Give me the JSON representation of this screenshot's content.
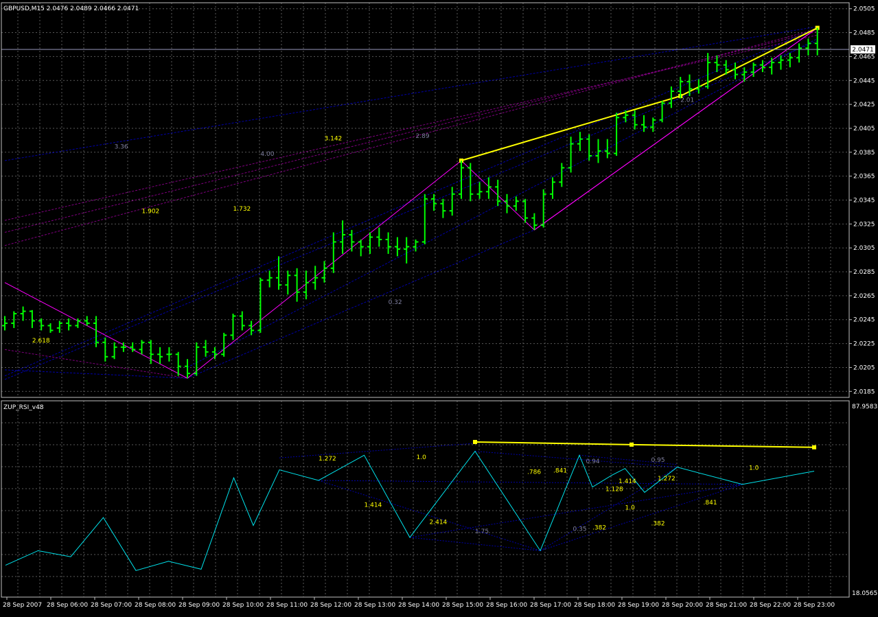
{
  "colors": {
    "background": "#000000",
    "frame": "#c0c0c0",
    "grid": "#5a5a5a",
    "candle": "#00ff00",
    "zigzag": "#ff00ff",
    "zup_yellow": "#ffff00",
    "fib_dark": "#0000aa",
    "fib_purple": "#800080",
    "rsi": "#00e5ee",
    "text": "#ffffff",
    "label_yellow": "#ffff00",
    "label_gray": "#8080a0"
  },
  "main_panel": {
    "title": "GBPUSD,M15  2.0476 2.0489 2.0466 2.0471",
    "current_price_label": "2.0471",
    "current_price": 2.0471,
    "price_ticks": [
      "2.0505",
      "2.0485",
      "2.0465",
      "2.0445",
      "2.0425",
      "2.0405",
      "2.0385",
      "2.0365",
      "2.0345",
      "2.0325",
      "2.0305",
      "2.0285",
      "2.0265",
      "2.0245",
      "2.0225",
      "2.0205",
      "2.0185"
    ]
  },
  "sub_panel": {
    "title": "ZUP_RSI_v48",
    "top_label": "87.9583",
    "bottom_label": "18.0565"
  },
  "time_axis": {
    "labels": [
      "28 Sep 2007",
      "28 Sep 06:00",
      "28 Sep 07:00",
      "28 Sep 08:00",
      "28 Sep 09:00",
      "28 Sep 10:00",
      "28 Sep 11:00",
      "28 Sep 12:00",
      "28 Sep 13:00",
      "28 Sep 14:00",
      "28 Sep 15:00",
      "28 Sep 16:00",
      "28 Sep 17:00",
      "28 Sep 18:00",
      "28 Sep 19:00",
      "28 Sep 20:00",
      "28 Sep 21:00",
      "28 Sep 22:00",
      "28 Sep 23:00"
    ]
  },
  "chart_data": [
    {
      "type": "ohlc",
      "symbol": "GBPUSD",
      "timeframe": "M15",
      "ylim": [
        2.018,
        2.051
      ],
      "bars": [
        [
          2.024,
          2.0248,
          2.0236,
          2.0242
        ],
        [
          2.0242,
          2.0252,
          2.0238,
          2.025
        ],
        [
          2.025,
          2.0256,
          2.0244,
          2.0252
        ],
        [
          2.0252,
          2.0253,
          2.0238,
          2.0244
        ],
        [
          2.0244,
          2.0246,
          2.0236,
          2.024
        ],
        [
          2.024,
          2.0242,
          2.0234,
          2.0236
        ],
        [
          2.0238,
          2.0244,
          2.0234,
          2.0242
        ],
        [
          2.0242,
          2.0246,
          2.0236,
          2.024
        ],
        [
          2.024,
          2.0246,
          2.0238,
          2.0244
        ],
        [
          2.0244,
          2.0248,
          2.024,
          2.0242
        ],
        [
          2.0242,
          2.0248,
          2.0222,
          2.0226
        ],
        [
          2.0226,
          2.023,
          2.021,
          2.0214
        ],
        [
          2.0214,
          2.0226,
          2.0212,
          2.0222
        ],
        [
          2.0222,
          2.0226,
          2.0218,
          2.0222
        ],
        [
          2.0222,
          2.0226,
          2.0218,
          2.022
        ],
        [
          2.022,
          2.0228,
          2.0216,
          2.0226
        ],
        [
          2.0226,
          2.0228,
          2.0208,
          2.0216
        ],
        [
          2.0216,
          2.0222,
          2.0208,
          2.0214
        ],
        [
          2.0216,
          2.0222,
          2.021,
          2.0216
        ],
        [
          2.0216,
          2.0218,
          2.0198,
          2.0206
        ],
        [
          2.0206,
          2.0212,
          2.0196,
          2.02
        ],
        [
          2.02,
          2.0226,
          2.0198,
          2.0222
        ],
        [
          2.0222,
          2.0228,
          2.0214,
          2.0218
        ],
        [
          2.0218,
          2.0222,
          2.0212,
          2.0216
        ],
        [
          2.0216,
          2.0234,
          2.0214,
          2.0232
        ],
        [
          2.0232,
          2.025,
          2.0228,
          2.0248
        ],
        [
          2.0248,
          2.0252,
          2.0236,
          2.024
        ],
        [
          2.024,
          2.0244,
          2.0232,
          2.0236
        ],
        [
          2.0236,
          2.028,
          2.0234,
          2.0278
        ],
        [
          2.0278,
          2.0286,
          2.0272,
          2.028
        ],
        [
          2.028,
          2.0298,
          2.027,
          2.0274
        ],
        [
          2.0274,
          2.0286,
          2.0266,
          2.0282
        ],
        [
          2.0282,
          2.0288,
          2.026,
          2.0268
        ],
        [
          2.0268,
          2.0286,
          2.0262,
          2.0276
        ],
        [
          2.0276,
          2.029,
          2.027,
          2.028
        ],
        [
          2.028,
          2.0294,
          2.0276,
          2.0288
        ],
        [
          2.0288,
          2.0318,
          2.0284,
          2.031
        ],
        [
          2.031,
          2.0328,
          2.03,
          2.0316
        ],
        [
          2.0316,
          2.032,
          2.0302,
          2.031
        ],
        [
          2.031,
          2.0312,
          2.0298,
          2.0306
        ],
        [
          2.0306,
          2.0318,
          2.03,
          2.0314
        ],
        [
          2.0314,
          2.0322,
          2.0306,
          2.0312
        ],
        [
          2.0312,
          2.0318,
          2.03,
          2.0306
        ],
        [
          2.0306,
          2.0314,
          2.0298,
          2.0304
        ],
        [
          2.0304,
          2.0314,
          2.0292,
          2.0306
        ],
        [
          2.0306,
          2.0312,
          2.0302,
          2.031
        ],
        [
          2.031,
          2.035,
          2.0308,
          2.0346
        ],
        [
          2.0346,
          2.035,
          2.0336,
          2.0342
        ],
        [
          2.0342,
          2.0346,
          2.033,
          2.0336
        ],
        [
          2.0336,
          2.0356,
          2.0332,
          2.035
        ],
        [
          2.035,
          2.0378,
          2.0346,
          2.0372
        ],
        [
          2.0372,
          2.0376,
          2.0344,
          2.035
        ],
        [
          2.035,
          2.036,
          2.0346,
          2.0352
        ],
        [
          2.0352,
          2.0364,
          2.0346,
          2.0356
        ],
        [
          2.0356,
          2.0362,
          2.034,
          2.0344
        ],
        [
          2.0344,
          2.035,
          2.0334,
          2.034
        ],
        [
          2.034,
          2.0348,
          2.0336,
          2.0344
        ],
        [
          2.0344,
          2.0346,
          2.0326,
          2.033
        ],
        [
          2.033,
          2.0334,
          2.032,
          2.0324
        ],
        [
          2.0324,
          2.0354,
          2.0322,
          2.035
        ],
        [
          2.035,
          2.0364,
          2.0346,
          2.036
        ],
        [
          2.036,
          2.0376,
          2.0356,
          2.0372
        ],
        [
          2.0372,
          2.0398,
          2.0368,
          2.0392
        ],
        [
          2.0392,
          2.0402,
          2.0386,
          2.0396
        ],
        [
          2.0396,
          2.04,
          2.0378,
          2.0382
        ],
        [
          2.0382,
          2.0396,
          2.0376,
          2.0386
        ],
        [
          2.0386,
          2.0396,
          2.038,
          2.0384
        ],
        [
          2.0384,
          2.0418,
          2.0382,
          2.0414
        ],
        [
          2.0414,
          2.042,
          2.041,
          2.0416
        ],
        [
          2.0416,
          2.042,
          2.0404,
          2.0408
        ],
        [
          2.0408,
          2.0416,
          2.0402,
          2.0406
        ],
        [
          2.0406,
          2.0414,
          2.0402,
          2.0412
        ],
        [
          2.0412,
          2.0428,
          2.041,
          2.0426
        ],
        [
          2.0426,
          2.044,
          2.0422,
          2.0436
        ],
        [
          2.0436,
          2.0448,
          2.043,
          2.0444
        ],
        [
          2.0444,
          2.045,
          2.0432,
          2.0438
        ],
        [
          2.0438,
          2.0446,
          2.0434,
          2.044
        ],
        [
          2.044,
          2.0468,
          2.0438,
          2.046
        ],
        [
          2.046,
          2.0466,
          2.0452,
          2.0458
        ],
        [
          2.0458,
          2.0462,
          2.045,
          2.0454
        ],
        [
          2.0454,
          2.046,
          2.0446,
          2.045
        ],
        [
          2.045,
          2.0456,
          2.0444,
          2.0452
        ],
        [
          2.0452,
          2.046,
          2.0448,
          2.0458
        ],
        [
          2.0458,
          2.0462,
          2.0452,
          2.0456
        ],
        [
          2.0456,
          2.0464,
          2.045,
          2.046
        ],
        [
          2.046,
          2.0466,
          2.0454,
          2.0462
        ],
        [
          2.0462,
          2.0468,
          2.0456,
          2.0464
        ],
        [
          2.0464,
          2.0476,
          2.046,
          2.0472
        ],
        [
          2.0472,
          2.048,
          2.0466,
          2.0476
        ],
        [
          2.0476,
          2.0489,
          2.0466,
          2.0471
        ]
      ],
      "zigzag": [
        [
          0,
          2.0276
        ],
        [
          20,
          2.0196
        ],
        [
          50,
          2.0378
        ],
        [
          58,
          2.032
        ],
        [
          89,
          2.0489
        ]
      ],
      "zup_pattern": [
        [
          50,
          2.0378
        ],
        [
          74,
          2.0432
        ],
        [
          89,
          2.0489
        ]
      ],
      "fib_labels": [
        {
          "text": "3.36",
          "bar": 12,
          "price": 2.0388,
          "color": "gray"
        },
        {
          "text": "4.00",
          "bar": 28,
          "price": 2.0382,
          "color": "gray"
        },
        {
          "text": "3.142",
          "bar": 35,
          "price": 2.0395,
          "color": "yellow"
        },
        {
          "text": "2.89",
          "bar": 45,
          "price": 2.0397,
          "color": "gray"
        },
        {
          "text": "1.902",
          "bar": 15,
          "price": 2.0334,
          "color": "yellow"
        },
        {
          "text": "1.732",
          "bar": 25,
          "price": 2.0336,
          "color": "yellow"
        },
        {
          "text": "2.618",
          "bar": 3,
          "price": 2.0226,
          "color": "yellow"
        },
        {
          "text": "0.32",
          "bar": 42,
          "price": 2.0258,
          "color": "gray"
        },
        {
          "text": "2.01",
          "bar": 74,
          "price": 2.0427,
          "color": "gray"
        }
      ]
    },
    {
      "type": "line",
      "name": "ZUP_RSI_v48",
      "ylim": [
        18.0565,
        87.9583
      ],
      "points": [
        [
          0,
          28.0
        ],
        [
          5,
          33.5
        ],
        [
          10,
          31.2
        ],
        [
          15,
          46.0
        ],
        [
          20,
          26.0
        ],
        [
          25,
          29.5
        ],
        [
          30,
          26.5
        ],
        [
          35,
          61.0
        ],
        [
          38,
          43.0
        ],
        [
          42,
          64.0
        ],
        [
          48,
          60.0
        ],
        [
          55,
          69.5
        ],
        [
          62,
          38.5
        ],
        [
          72,
          71.0
        ],
        [
          82,
          33.5
        ],
        [
          88,
          69.5
        ],
        [
          90,
          57.5
        ],
        [
          93,
          62.0
        ],
        [
          95,
          64.5
        ],
        [
          98,
          55.5
        ],
        [
          103,
          65.0
        ],
        [
          113,
          58.5
        ],
        [
          124,
          63.5
        ]
      ],
      "zup_line": [
        [
          72,
          74.5
        ],
        [
          96,
          73.5
        ],
        [
          124,
          72.5
        ]
      ],
      "labels": [
        {
          "text": "1.272",
          "x": 48,
          "y": 67.5,
          "color": "yellow"
        },
        {
          "text": "1.0",
          "x": 63,
          "y": 68.0,
          "color": "yellow"
        },
        {
          "text": ".786",
          "x": 80,
          "y": 62.5,
          "color": "yellow"
        },
        {
          "text": ".841",
          "x": 84,
          "y": 63.0,
          "color": "yellow"
        },
        {
          "text": "0.94",
          "x": 89,
          "y": 66.5,
          "color": "gray"
        },
        {
          "text": "0.95",
          "x": 99,
          "y": 67.0,
          "color": "gray"
        },
        {
          "text": "1.128",
          "x": 92,
          "y": 56.0,
          "color": "yellow"
        },
        {
          "text": "1.414",
          "x": 94,
          "y": 59.0,
          "color": "yellow"
        },
        {
          "text": "1.272",
          "x": 100,
          "y": 60.0,
          "color": "yellow"
        },
        {
          "text": "1.0",
          "x": 114,
          "y": 64.0,
          "color": "yellow"
        },
        {
          "text": "1.414",
          "x": 55,
          "y": 50.0,
          "color": "yellow"
        },
        {
          "text": "1.0",
          "x": 95,
          "y": 49.0,
          "color": "yellow"
        },
        {
          "text": ".841",
          "x": 107,
          "y": 51.0,
          "color": "yellow"
        },
        {
          "text": "2.414",
          "x": 65,
          "y": 43.5,
          "color": "yellow"
        },
        {
          "text": "1.75",
          "x": 72,
          "y": 40.0,
          "color": "gray"
        },
        {
          "text": "0.35",
          "x": 87,
          "y": 41.0,
          "color": "gray"
        },
        {
          "text": ".382",
          "x": 90,
          "y": 41.5,
          "color": "yellow"
        },
        {
          "text": ".382",
          "x": 99,
          "y": 43.0,
          "color": "yellow"
        }
      ]
    }
  ]
}
